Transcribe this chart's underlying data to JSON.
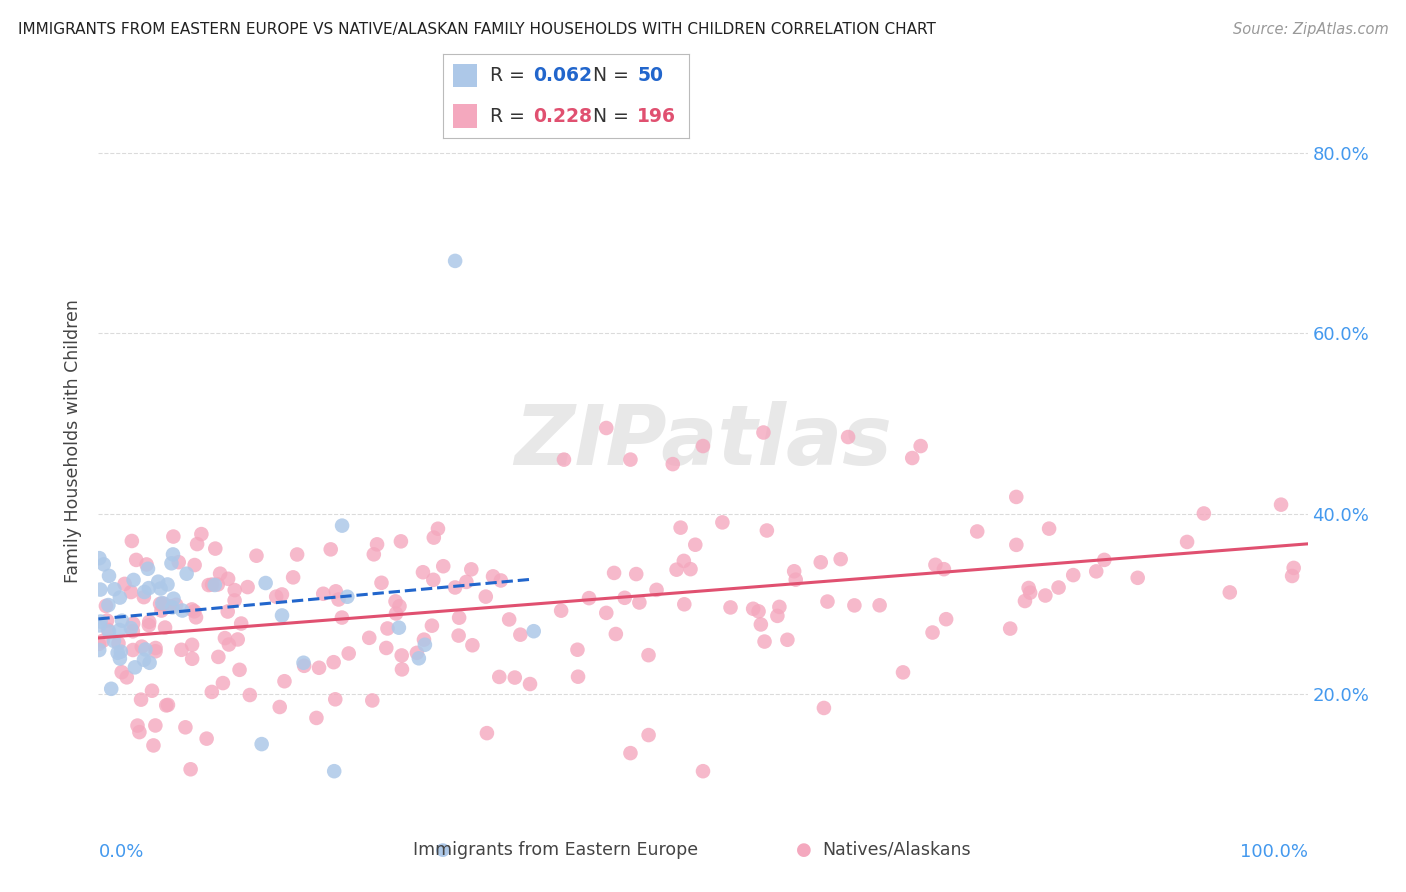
{
  "title": "IMMIGRANTS FROM EASTERN EUROPE VS NATIVE/ALASKAN FAMILY HOUSEHOLDS WITH CHILDREN CORRELATION CHART",
  "source": "Source: ZipAtlas.com",
  "ylabel": "Family Households with Children",
  "blue_R": 0.062,
  "blue_N": 50,
  "pink_R": 0.228,
  "pink_N": 196,
  "blue_color": "#adc8e8",
  "pink_color": "#f4a8be",
  "blue_line_color": "#2266cc",
  "pink_line_color": "#e05070",
  "blue_label": "Immigrants from Eastern Europe",
  "pink_label": "Natives/Alaskans",
  "title_color": "#222222",
  "source_color": "#999999",
  "axis_label_color": "#4499ee",
  "grid_color": "#cccccc",
  "background_color": "#ffffff",
  "xlim": [
    0.0,
    1.0
  ],
  "ylim": [
    0.08,
    0.88
  ],
  "ytick_values": [
    0.2,
    0.4,
    0.6,
    0.8
  ]
}
